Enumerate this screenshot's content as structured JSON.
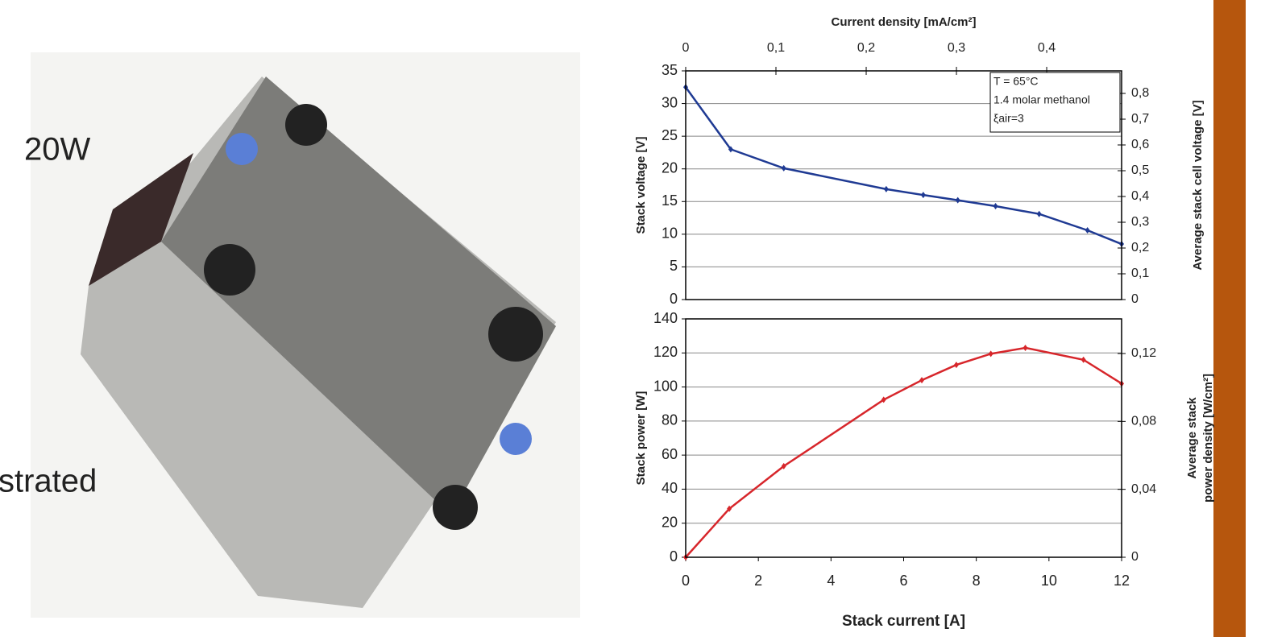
{
  "slide": {
    "texts": [
      "20W",
      "strated"
    ]
  },
  "chart_data": [
    {
      "type": "line",
      "x2_label": "Current density [mA/cm²]",
      "y_label": "Stack voltage [V]",
      "y2_label": "Average stack cell voltage [V]",
      "annotations": [
        "T = 65°C",
        "1.4 molar methanol",
        "ξair=3"
      ],
      "x": [
        0,
        1.24,
        2.7,
        5.52,
        6.54,
        7.49,
        8.53,
        9.73,
        11.06,
        12
      ],
      "xlim": [
        0,
        12
      ],
      "x2lim": [
        0,
        0.483
      ],
      "x2ticks": [
        0,
        {
          "value": 0.1,
          "label": "0,1"
        },
        {
          "value": 0.2,
          "label": "0,2"
        },
        {
          "value": 0.3,
          "label": "0,3"
        },
        {
          "value": 0.4,
          "label": "0,4"
        }
      ],
      "ylim": [
        0,
        35
      ],
      "yticks": [
        0,
        5,
        10,
        15,
        20,
        25,
        30,
        35
      ],
      "y2lim": [
        0,
        0.8875
      ],
      "y2ticks": [
        0,
        {
          "value": 0.1,
          "label": "0,1"
        },
        {
          "value": 0.2,
          "label": "0,2"
        },
        {
          "value": 0.3,
          "label": "0,3"
        },
        {
          "value": 0.4,
          "label": "0,4"
        },
        {
          "value": 0.5,
          "label": "0,5"
        },
        {
          "value": 0.6,
          "label": "0,6"
        },
        {
          "value": 0.7,
          "label": "0,7"
        },
        {
          "value": 0.8,
          "label": "0,8"
        }
      ],
      "grid": true,
      "series": [
        {
          "color": "#1f3a93",
          "values": [
            32.5,
            23,
            20.1,
            16.9,
            16.0,
            15.2,
            14.3,
            13.1,
            10.6,
            8.5
          ]
        }
      ]
    },
    {
      "type": "line",
      "x_label": "Stack current [A]",
      "y_label": "Stack power [W]",
      "y2_label": [
        "Average stack",
        "power density [W/cm²]"
      ],
      "x": [
        0,
        1.2,
        2.7,
        5.45,
        6.5,
        7.45,
        8.4,
        9.35,
        10.95,
        12
      ],
      "xlim": [
        0,
        12
      ],
      "xticks": [
        0,
        2,
        4,
        6,
        8,
        10,
        12
      ],
      "ylim": [
        0,
        140
      ],
      "yticks": [
        0,
        20,
        40,
        60,
        80,
        100,
        120,
        140
      ],
      "y2lim": [
        0,
        0.1404
      ],
      "y2ticks": [
        0,
        {
          "value": 0.04,
          "label": "0,04"
        },
        {
          "value": 0.08,
          "label": "0,08"
        },
        {
          "value": 0.12,
          "label": "0,12"
        }
      ],
      "grid": true,
      "series": [
        {
          "color": "#d7262b",
          "values": [
            0,
            28.5,
            53.5,
            92.5,
            104,
            113,
            119.5,
            123,
            116,
            102
          ]
        }
      ]
    }
  ]
}
